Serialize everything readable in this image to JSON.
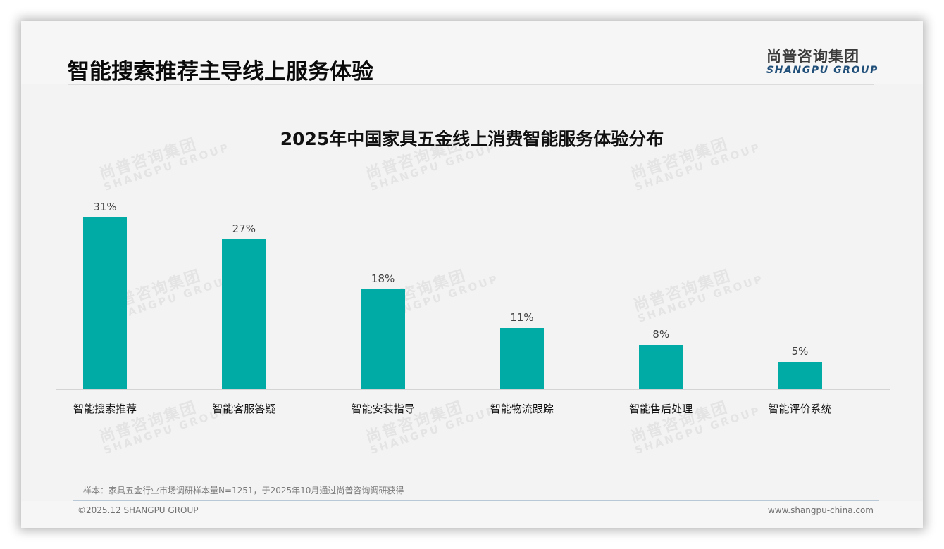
{
  "header": {
    "title": "智能搜索推荐主导线上服务体验",
    "logo_cn": "尚普咨询集团",
    "logo_en": "SHANGPU GROUP"
  },
  "watermark": {
    "cn": "尚普咨询集团",
    "en": "SHANGPU GROUP"
  },
  "colors": {
    "bar": "#00aba5",
    "logo_en": "#1f4e79",
    "background": "#f3f3f3"
  },
  "chart_data": {
    "type": "bar",
    "title": "2025年中国家具五金线上消费智能服务体验分布",
    "xlabel": "",
    "ylabel": "",
    "categories": [
      "智能搜索推荐",
      "智能客服答疑",
      "智能安装指导",
      "智能物流跟踪",
      "智能售后处理",
      "智能评价系统"
    ],
    "values": [
      31,
      27,
      18,
      11,
      8,
      5
    ],
    "value_labels": [
      "31%",
      "27%",
      "18%",
      "11%",
      "8%",
      "5%"
    ],
    "unit": "%",
    "ylim": [
      0,
      31
    ],
    "grid": false,
    "legend": null
  },
  "footer": {
    "note": "样本：家具五金行业市场调研样本量N=1251，于2025年10月通过尚普咨询调研获得",
    "copyright": "©2025.12 SHANGPU GROUP",
    "website": "www.shangpu-china.com"
  }
}
